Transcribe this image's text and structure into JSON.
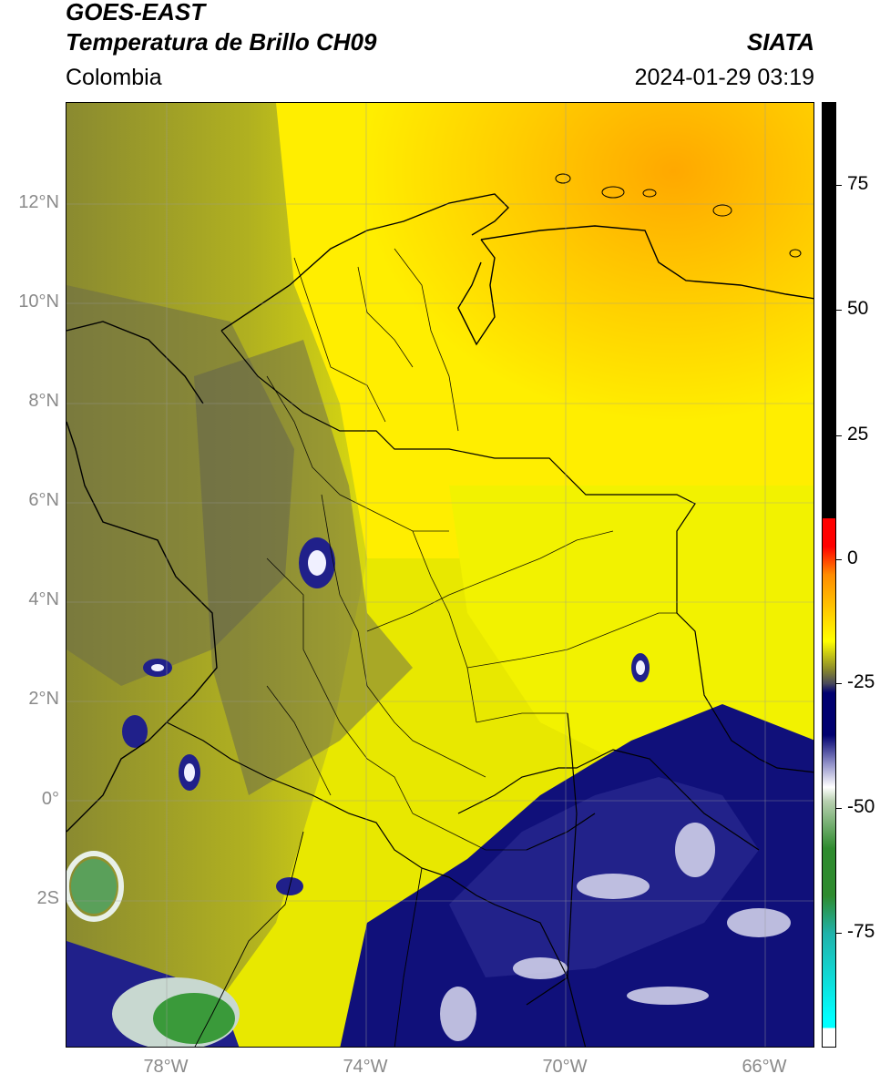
{
  "header": {
    "satellite": "GOES-EAST",
    "product": "Temperatura de Brillo CH09",
    "region": "Colombia",
    "brand": "SIATA",
    "datetime": "2024-01-29 03:19"
  },
  "map": {
    "extent": {
      "lon_min": -80.5,
      "lon_max": -65.5,
      "lat_min": -5.0,
      "lat_max": 14.0
    },
    "latitude_ticks": [
      {
        "value": 12,
        "label": "12°N"
      },
      {
        "value": 10,
        "label": "10°N"
      },
      {
        "value": 8,
        "label": "8°N"
      },
      {
        "value": 6,
        "label": "6°N"
      },
      {
        "value": 4,
        "label": "4°N"
      },
      {
        "value": 2,
        "label": "2°N"
      },
      {
        "value": 0,
        "label": "0°"
      },
      {
        "value": -2,
        "label": "2S"
      }
    ],
    "longitude_ticks": [
      {
        "value": -78,
        "label": "78°W"
      },
      {
        "value": -74,
        "label": "74°W"
      },
      {
        "value": -70,
        "label": "70°W"
      },
      {
        "value": -66,
        "label": "66°W"
      }
    ],
    "gridlines": true
  },
  "colorbar": {
    "min": -95,
    "max": 90,
    "ticks": [
      {
        "value": 75,
        "label": "75"
      },
      {
        "value": 50,
        "label": "50"
      },
      {
        "value": 25,
        "label": "25"
      },
      {
        "value": 0,
        "label": "0"
      },
      {
        "value": -25,
        "label": "-25"
      },
      {
        "value": -50,
        "label": "-50"
      },
      {
        "value": -75,
        "label": "-75"
      }
    ],
    "colors": {
      "saturated_top": "#000000",
      "red": "#ff0000",
      "orange": "#ff8c00",
      "yellow": "#ffff00",
      "olive": "#8a8a2a",
      "gray": "#4a4a5a",
      "navy": "#000070",
      "white": "#ffffff",
      "green": "#2e8b2e",
      "teal": "#20b2aa",
      "cyan": "#00ffff"
    }
  }
}
